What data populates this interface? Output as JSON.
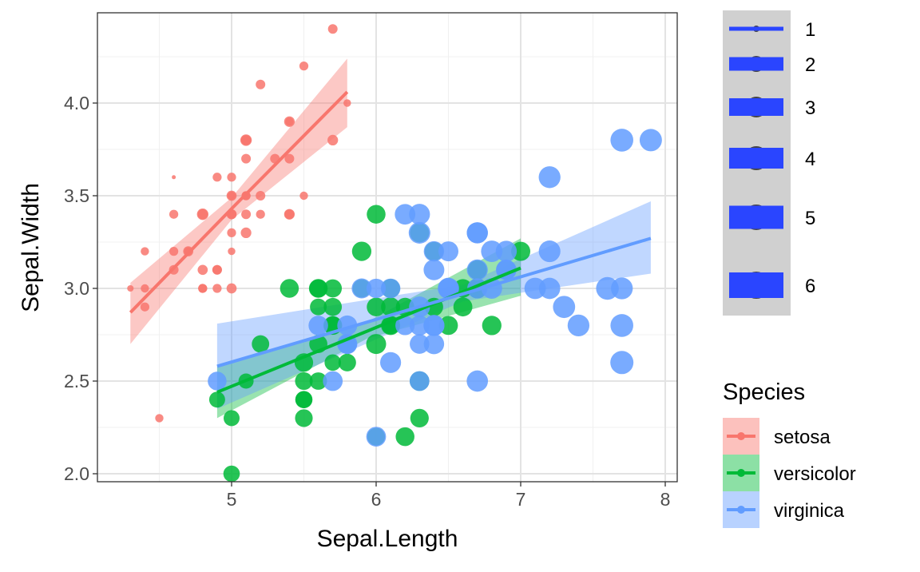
{
  "chart_data": {
    "type": "scatter",
    "xlabel": "Sepal.Length",
    "ylabel": "Sepal.Width",
    "xlim": [
      4.07,
      8.08
    ],
    "ylim": [
      1.96,
      4.49
    ],
    "x_ticks": [
      5,
      6,
      7,
      8
    ],
    "x_tick_labels": [
      "5",
      "6",
      "7",
      "8"
    ],
    "y_ticks": [
      2.0,
      2.5,
      3.0,
      3.5,
      4.0
    ],
    "y_tick_labels": [
      "2.0",
      "2.5",
      "3.0",
      "3.5",
      "4.0"
    ],
    "grid": true,
    "size_legend": {
      "title": "",
      "values": [
        1,
        2,
        3,
        4,
        5,
        6
      ],
      "labels": [
        "1",
        "2",
        "3",
        "4",
        "5",
        "6"
      ],
      "key_color": "#2A45FF"
    },
    "color_legend": {
      "title": "Species",
      "placement": "right"
    },
    "series": [
      {
        "name": "setosa",
        "color": "#F8766D",
        "fit": {
          "x": [
            4.3,
            5.0,
            5.8
          ],
          "y": [
            2.87,
            3.43,
            4.06
          ],
          "lower": [
            2.7,
            3.37,
            3.87
          ],
          "upper": [
            3.03,
            3.49,
            4.24
          ]
        },
        "points": [
          [
            5.1,
            3.5,
            1.4
          ],
          [
            4.9,
            3.0,
            1.4
          ],
          [
            4.7,
            3.2,
            1.3
          ],
          [
            4.6,
            3.1,
            1.5
          ],
          [
            5.0,
            3.6,
            1.4
          ],
          [
            5.4,
            3.9,
            1.7
          ],
          [
            4.6,
            3.4,
            1.4
          ],
          [
            5.0,
            3.4,
            1.5
          ],
          [
            4.4,
            2.9,
            1.4
          ],
          [
            4.9,
            3.1,
            1.5
          ],
          [
            5.4,
            3.7,
            1.5
          ],
          [
            4.8,
            3.4,
            1.6
          ],
          [
            4.8,
            3.0,
            1.4
          ],
          [
            4.3,
            3.0,
            1.1
          ],
          [
            5.8,
            4.0,
            1.2
          ],
          [
            5.7,
            4.4,
            1.5
          ],
          [
            5.4,
            3.9,
            1.3
          ],
          [
            5.1,
            3.5,
            1.4
          ],
          [
            5.7,
            3.8,
            1.7
          ],
          [
            5.1,
            3.8,
            1.5
          ],
          [
            5.4,
            3.4,
            1.7
          ],
          [
            5.1,
            3.7,
            1.5
          ],
          [
            4.6,
            3.6,
            1.0
          ],
          [
            5.1,
            3.3,
            1.7
          ],
          [
            4.8,
            3.4,
            1.9
          ],
          [
            5.0,
            3.0,
            1.6
          ],
          [
            5.0,
            3.4,
            1.6
          ],
          [
            5.2,
            3.5,
            1.5
          ],
          [
            5.2,
            3.4,
            1.4
          ],
          [
            4.7,
            3.2,
            1.6
          ],
          [
            4.8,
            3.1,
            1.6
          ],
          [
            5.4,
            3.4,
            1.5
          ],
          [
            5.2,
            4.1,
            1.5
          ],
          [
            5.5,
            4.2,
            1.4
          ],
          [
            4.9,
            3.1,
            1.5
          ],
          [
            5.0,
            3.2,
            1.2
          ],
          [
            5.5,
            3.5,
            1.3
          ],
          [
            4.9,
            3.6,
            1.4
          ],
          [
            4.4,
            3.0,
            1.3
          ],
          [
            5.1,
            3.4,
            1.5
          ],
          [
            5.0,
            3.5,
            1.3
          ],
          [
            4.5,
            2.3,
            1.3
          ],
          [
            4.4,
            3.2,
            1.3
          ],
          [
            5.0,
            3.5,
            1.6
          ],
          [
            5.1,
            3.8,
            1.9
          ],
          [
            4.8,
            3.0,
            1.4
          ],
          [
            5.1,
            3.8,
            1.6
          ],
          [
            4.6,
            3.2,
            1.4
          ],
          [
            5.3,
            3.7,
            1.5
          ],
          [
            5.0,
            3.3,
            1.4
          ]
        ]
      },
      {
        "name": "versicolor",
        "color": "#00BA38",
        "fit": {
          "x": [
            4.9,
            5.94,
            7.0
          ],
          "y": [
            2.44,
            2.77,
            3.11
          ],
          "lower": [
            2.3,
            2.73,
            2.96
          ],
          "upper": [
            2.58,
            2.82,
            3.27
          ]
        },
        "points": [
          [
            7.0,
            3.2,
            4.7
          ],
          [
            6.4,
            3.2,
            4.5
          ],
          [
            6.9,
            3.1,
            4.9
          ],
          [
            5.5,
            2.3,
            4.0
          ],
          [
            6.5,
            2.8,
            4.6
          ],
          [
            5.7,
            2.8,
            4.5
          ],
          [
            6.3,
            3.3,
            4.7
          ],
          [
            4.9,
            2.4,
            3.3
          ],
          [
            6.6,
            2.9,
            4.6
          ],
          [
            5.2,
            2.7,
            3.9
          ],
          [
            5.0,
            2.0,
            3.5
          ],
          [
            5.9,
            3.0,
            4.2
          ],
          [
            6.0,
            2.2,
            4.0
          ],
          [
            6.1,
            2.9,
            4.7
          ],
          [
            5.6,
            2.9,
            3.6
          ],
          [
            6.7,
            3.1,
            4.4
          ],
          [
            5.6,
            3.0,
            4.5
          ],
          [
            5.8,
            2.7,
            4.1
          ],
          [
            6.2,
            2.2,
            4.5
          ],
          [
            5.6,
            2.5,
            3.9
          ],
          [
            5.9,
            3.2,
            4.8
          ],
          [
            6.1,
            2.8,
            4.0
          ],
          [
            6.3,
            2.5,
            4.9
          ],
          [
            6.1,
            2.8,
            4.7
          ],
          [
            6.4,
            2.9,
            4.3
          ],
          [
            6.6,
            3.0,
            4.4
          ],
          [
            6.8,
            2.8,
            4.8
          ],
          [
            6.7,
            3.0,
            5.0
          ],
          [
            6.0,
            2.9,
            4.5
          ],
          [
            5.7,
            2.6,
            3.5
          ],
          [
            5.5,
            2.4,
            3.8
          ],
          [
            5.5,
            2.4,
            3.7
          ],
          [
            5.8,
            2.7,
            3.9
          ],
          [
            6.0,
            2.7,
            5.1
          ],
          [
            5.4,
            3.0,
            4.5
          ],
          [
            6.0,
            3.4,
            4.5
          ],
          [
            6.7,
            3.1,
            4.7
          ],
          [
            6.3,
            2.3,
            4.4
          ],
          [
            5.6,
            3.0,
            4.1
          ],
          [
            5.5,
            2.5,
            4.0
          ],
          [
            5.5,
            2.6,
            4.4
          ],
          [
            6.1,
            3.0,
            4.6
          ],
          [
            5.8,
            2.6,
            4.0
          ],
          [
            5.0,
            2.3,
            3.3
          ],
          [
            5.6,
            2.7,
            4.2
          ],
          [
            5.7,
            3.0,
            4.2
          ],
          [
            5.7,
            2.9,
            4.2
          ],
          [
            6.2,
            2.9,
            4.3
          ],
          [
            5.1,
            2.5,
            3.0
          ],
          [
            5.7,
            2.8,
            4.1
          ]
        ]
      },
      {
        "name": "virginica",
        "color": "#619CFF",
        "fit": {
          "x": [
            4.9,
            6.6,
            7.9
          ],
          "y": [
            2.58,
            2.97,
            3.27
          ],
          "lower": [
            2.35,
            2.93,
            3.08
          ],
          "upper": [
            2.81,
            3.02,
            3.47
          ]
        },
        "points": [
          [
            6.3,
            3.3,
            6.0
          ],
          [
            5.8,
            2.7,
            5.1
          ],
          [
            7.1,
            3.0,
            5.9
          ],
          [
            6.3,
            2.9,
            5.6
          ],
          [
            6.5,
            3.0,
            5.8
          ],
          [
            7.6,
            3.0,
            6.6
          ],
          [
            4.9,
            2.5,
            4.5
          ],
          [
            7.3,
            2.9,
            6.3
          ],
          [
            6.7,
            2.5,
            5.8
          ],
          [
            7.2,
            3.6,
            6.1
          ],
          [
            6.5,
            3.2,
            5.1
          ],
          [
            6.4,
            2.7,
            5.3
          ],
          [
            6.8,
            3.0,
            5.5
          ],
          [
            5.7,
            2.5,
            5.0
          ],
          [
            5.8,
            2.8,
            5.1
          ],
          [
            6.4,
            3.2,
            5.3
          ],
          [
            6.5,
            3.0,
            5.5
          ],
          [
            7.7,
            3.8,
            6.7
          ],
          [
            7.7,
            2.6,
            6.9
          ],
          [
            6.0,
            2.2,
            5.0
          ],
          [
            6.9,
            3.2,
            5.7
          ],
          [
            5.6,
            2.8,
            4.9
          ],
          [
            7.7,
            2.8,
            6.7
          ],
          [
            6.3,
            2.7,
            4.9
          ],
          [
            6.7,
            3.3,
            5.7
          ],
          [
            7.2,
            3.2,
            6.0
          ],
          [
            6.2,
            2.8,
            4.8
          ],
          [
            6.1,
            3.0,
            4.9
          ],
          [
            6.4,
            2.8,
            5.6
          ],
          [
            7.2,
            3.0,
            5.8
          ],
          [
            7.4,
            2.8,
            6.1
          ],
          [
            7.9,
            3.8,
            6.4
          ],
          [
            6.4,
            2.8,
            5.6
          ],
          [
            6.3,
            2.8,
            5.1
          ],
          [
            6.1,
            2.6,
            5.6
          ],
          [
            7.7,
            3.0,
            6.1
          ],
          [
            6.3,
            3.4,
            5.6
          ],
          [
            6.4,
            3.1,
            5.5
          ],
          [
            6.0,
            3.0,
            4.8
          ],
          [
            6.9,
            3.1,
            5.4
          ],
          [
            6.7,
            3.1,
            5.6
          ],
          [
            6.9,
            3.1,
            5.1
          ],
          [
            5.8,
            2.7,
            5.1
          ],
          [
            6.8,
            3.2,
            5.9
          ],
          [
            6.7,
            3.3,
            5.7
          ],
          [
            6.7,
            3.0,
            5.2
          ],
          [
            6.3,
            2.5,
            5.0
          ],
          [
            6.5,
            3.0,
            5.2
          ],
          [
            6.2,
            3.4,
            5.4
          ],
          [
            5.9,
            3.0,
            5.1
          ]
        ]
      }
    ]
  }
}
